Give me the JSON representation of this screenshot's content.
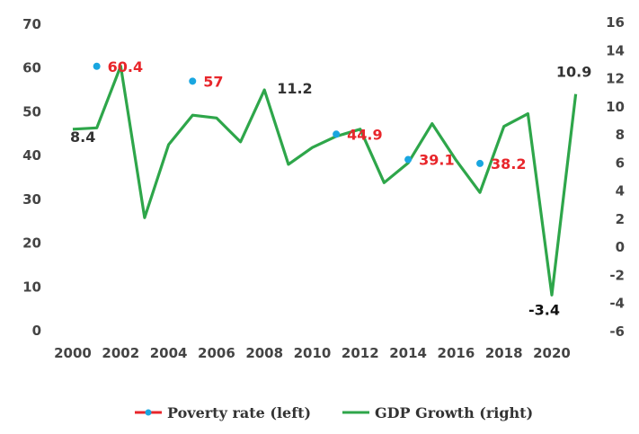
{
  "chart_data": {
    "type": "line",
    "title": "",
    "xlabel": "",
    "ylabel": "",
    "x": [
      2000,
      2001,
      2002,
      2003,
      2004,
      2005,
      2006,
      2007,
      2008,
      2009,
      2010,
      2011,
      2012,
      2013,
      2014,
      2015,
      2016,
      2017,
      2018,
      2019,
      2020,
      2021
    ],
    "x_ticks": [
      "2000",
      "2002",
      "2004",
      "2006",
      "2008",
      "2010",
      "2012",
      "2014",
      "2016",
      "2018",
      "2020"
    ],
    "y_left_ticks": [
      "0",
      "10",
      "20",
      "30",
      "40",
      "50",
      "60",
      "70"
    ],
    "y_right_ticks": [
      "-6",
      "-4",
      "-2",
      "0",
      "2",
      "4",
      "6",
      "8",
      "10",
      "12",
      "14",
      "16"
    ],
    "ylim_left": [
      0,
      70
    ],
    "ylim_right": [
      -6,
      16
    ],
    "grid": false,
    "legend_position": "bottom",
    "series": [
      {
        "name": "Poverty rate (left)",
        "axis": "left",
        "color": "#19a6e0",
        "legend_color": "#e8262b",
        "style": "markers",
        "points": [
          {
            "x": 2001,
            "y": 60.4,
            "label": "60.4"
          },
          {
            "x": 2005,
            "y": 57,
            "label": "57"
          },
          {
            "x": 2011,
            "y": 44.9,
            "label": "44.9"
          },
          {
            "x": 2014,
            "y": 39.1,
            "label": "39.1"
          },
          {
            "x": 2017,
            "y": 38.2,
            "label": "38.2"
          }
        ]
      },
      {
        "name": "GDP Growth (right)",
        "axis": "right",
        "color": "#2ea64a",
        "style": "line",
        "values": [
          8.4,
          8.5,
          12.9,
          2.1,
          7.3,
          9.4,
          9.2,
          7.5,
          11.2,
          5.9,
          7.1,
          7.9,
          8.4,
          4.6,
          6.0,
          8.8,
          6.2,
          3.9,
          8.6,
          9.5,
          -3.4,
          10.9
        ],
        "data_labels": [
          {
            "x": 2000,
            "y": 8.4,
            "text": "8.4"
          },
          {
            "x": 2008,
            "y": 11.2,
            "text": "11.2"
          },
          {
            "x": 2020,
            "y": -3.4,
            "text": "-3.4"
          },
          {
            "x": 2021,
            "y": 10.9,
            "text": "10.9"
          }
        ]
      }
    ]
  }
}
